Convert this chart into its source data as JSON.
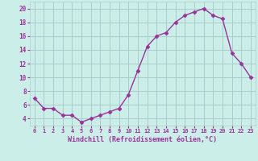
{
  "x": [
    0,
    1,
    2,
    3,
    4,
    5,
    6,
    7,
    8,
    9,
    10,
    11,
    12,
    13,
    14,
    15,
    16,
    17,
    18,
    19,
    20,
    21,
    22,
    23
  ],
  "y": [
    7.0,
    5.5,
    5.5,
    4.5,
    4.5,
    3.5,
    4.0,
    4.5,
    5.0,
    5.5,
    7.5,
    11.0,
    14.5,
    16.0,
    16.5,
    18.0,
    19.0,
    19.5,
    20.0,
    19.0,
    18.5,
    13.5,
    12.0,
    10.0
  ],
  "line_color": "#993399",
  "marker": "D",
  "marker_size": 2.5,
  "bg_color": "#cceee8",
  "grid_color": "#aacccc",
  "xlabel": "Windchill (Refroidissement éolien,°C)",
  "xlabel_color": "#993399",
  "tick_color": "#993399",
  "xlim": [
    -0.5,
    23.5
  ],
  "ylim": [
    3,
    21
  ],
  "yticks": [
    4,
    6,
    8,
    10,
    12,
    14,
    16,
    18,
    20
  ],
  "xticks": [
    0,
    1,
    2,
    3,
    4,
    5,
    6,
    7,
    8,
    9,
    10,
    11,
    12,
    13,
    14,
    15,
    16,
    17,
    18,
    19,
    20,
    21,
    22,
    23
  ]
}
